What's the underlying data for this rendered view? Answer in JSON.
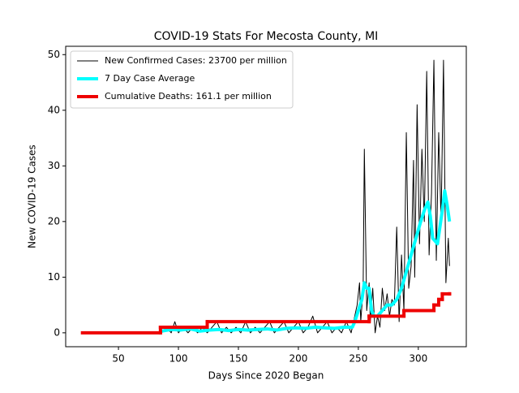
{
  "chart_data": {
    "type": "line",
    "title": "COVID-19 Stats For Mecosta County, MI",
    "xlabel": "Days Since 2020 Began",
    "ylabel": "New COVID-19 Cases",
    "xlim": [
      6,
      340
    ],
    "ylim": [
      -2.5,
      51.5
    ],
    "xticks": [
      50,
      100,
      150,
      200,
      250,
      300
    ],
    "yticks": [
      0,
      10,
      20,
      30,
      40,
      50
    ],
    "legend": "upper left",
    "series": [
      {
        "name": "New Confirmed Cases: 23700 per million",
        "color": "#000000",
        "width": 1,
        "x": [
          86,
          90,
          94,
          97,
          100,
          104,
          108,
          112,
          116,
          120,
          124,
          128,
          132,
          136,
          140,
          144,
          148,
          152,
          156,
          160,
          164,
          168,
          172,
          176,
          180,
          184,
          188,
          192,
          196,
          200,
          204,
          208,
          212,
          216,
          220,
          224,
          228,
          232,
          236,
          240,
          244,
          247,
          249,
          251,
          252,
          254,
          255,
          257,
          259,
          260,
          262,
          264,
          266,
          268,
          270,
          272,
          274,
          276,
          278,
          280,
          282,
          284,
          286,
          288,
          290,
          292,
          294,
          296,
          297,
          299,
          301,
          303,
          305,
          307,
          309,
          311,
          313,
          315,
          317,
          319,
          321,
          323,
          325,
          326
        ],
        "values": [
          0,
          1,
          0,
          2,
          0,
          1,
          0,
          1,
          0,
          1,
          0,
          1,
          2,
          0,
          1,
          0,
          1,
          0,
          2,
          0,
          1,
          0,
          1,
          2,
          0,
          1,
          2,
          0,
          1,
          2,
          0,
          1,
          3,
          0,
          1,
          2,
          0,
          1,
          0,
          2,
          0,
          3,
          5,
          9,
          2,
          8,
          33,
          4,
          9,
          2,
          8,
          0,
          3,
          1,
          8,
          4,
          7,
          3,
          6,
          5,
          19,
          2,
          14,
          4,
          36,
          8,
          12,
          31,
          10,
          41,
          16,
          33,
          20,
          47,
          14,
          25,
          49,
          13,
          36,
          20,
          49,
          9,
          17,
          12
        ]
      },
      {
        "name": "7 Day Case Average",
        "color": "#00ffff",
        "width": 4,
        "x": [
          86,
          94,
          102,
          110,
          118,
          126,
          134,
          142,
          150,
          158,
          166,
          174,
          182,
          190,
          198,
          206,
          214,
          222,
          230,
          238,
          245,
          247,
          250,
          253,
          255,
          257,
          259,
          261,
          263,
          266,
          270,
          274,
          278,
          282,
          286,
          290,
          294,
          298,
          302,
          305,
          308,
          310,
          312,
          314,
          316,
          318,
          320,
          322,
          324,
          326
        ],
        "values": [
          0.3,
          0.6,
          0.5,
          0.7,
          0.3,
          0.5,
          0.6,
          0.4,
          0.6,
          0.5,
          0.6,
          0.7,
          0.5,
          0.8,
          0.9,
          0.8,
          1,
          0.9,
          0.8,
          1,
          1,
          2,
          4,
          6,
          9,
          8,
          8,
          4,
          3,
          3,
          4,
          5,
          5,
          6,
          8,
          11,
          14,
          17,
          20,
          22,
          23.5,
          21,
          17,
          16.5,
          16,
          19,
          22,
          25.5,
          23,
          20
        ]
      },
      {
        "name": "Cumulative Deaths: 161.1 per million",
        "color": "#ee0000",
        "width": 4,
        "step": "post",
        "x": [
          20,
          85,
          124,
          259,
          288,
          313,
          317,
          320,
          326
        ],
        "values": [
          0,
          1,
          2,
          3,
          4,
          5,
          6,
          7,
          7
        ]
      }
    ]
  }
}
